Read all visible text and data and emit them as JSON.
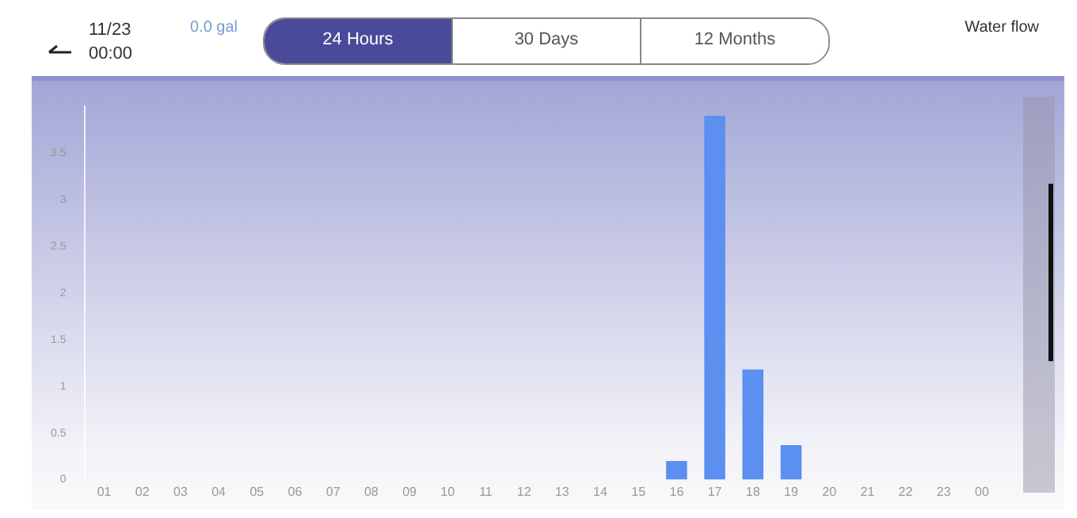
{
  "chart_data": {
    "type": "bar",
    "annotations": [
      "11/23",
      "00:00",
      "0.0 gal",
      "24 Hours",
      "30 Days",
      "12 Months",
      "Water flow"
    ],
    "categories": [
      "01",
      "02",
      "03",
      "04",
      "05",
      "06",
      "07",
      "08",
      "09",
      "10",
      "11",
      "12",
      "13",
      "14",
      "15",
      "16",
      "17",
      "18",
      "19",
      "20",
      "21",
      "22",
      "23",
      "00"
    ],
    "values": [
      0,
      0,
      0,
      0,
      0,
      0,
      0,
      0,
      0,
      0,
      0,
      0,
      0,
      0,
      0,
      0.2,
      3.9,
      1.18,
      0.37,
      0,
      0,
      0,
      0,
      0
    ],
    "color": "#5b8ff0",
    "ylim": [
      0,
      4
    ],
    "yticks": [
      0,
      0.5,
      1,
      1.5,
      2,
      2.5,
      3,
      3.5
    ],
    "grid": false,
    "legend": false
  }
}
